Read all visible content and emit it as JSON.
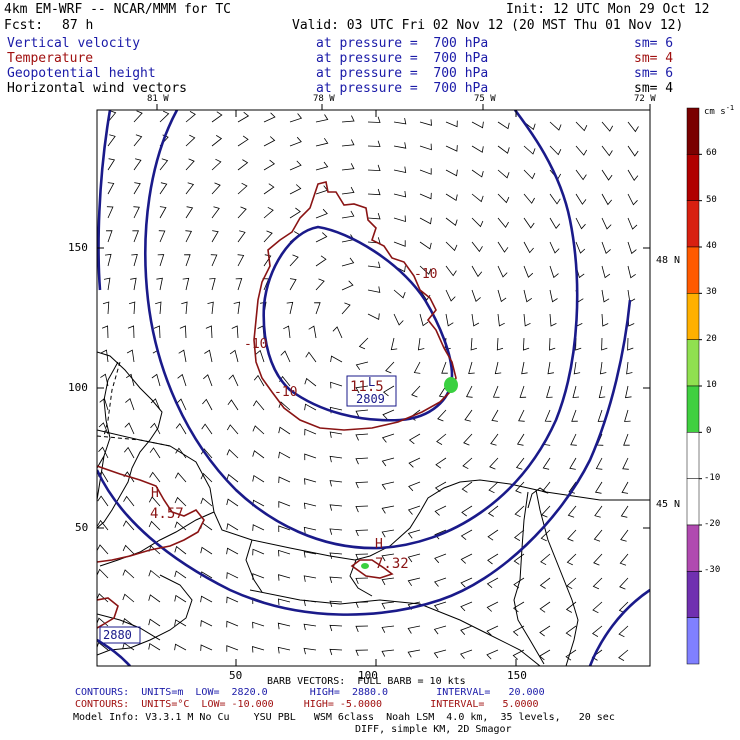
{
  "header": {
    "model": "4km EM-WRF -- NCAR/MMM for TC",
    "init": "Init: 12 UTC Mon 29 Oct 12",
    "fcst_label": "Fcst:",
    "fcst_value": "87 h",
    "valid": "Valid: 03 UTC Fri 02 Nov 12 (20 MST Thu 01 Nov 12)"
  },
  "fields": [
    {
      "name": "Vertical velocity",
      "level": "at pressure =  700 hPa",
      "sm": "sm= 6",
      "color": "#1a1aa8"
    },
    {
      "name": "Temperature",
      "level": "at pressure =  700 hPa",
      "sm": "sm= 4",
      "color": "#a01010"
    },
    {
      "name": "Geopotential height",
      "level": "at pressure =  700 hPa",
      "sm": "sm= 6",
      "color": "#1a1aa8"
    },
    {
      "name": "Horizontal wind vectors",
      "level": "at pressure =  700 hPa",
      "sm": "sm= 4",
      "color": "#000000"
    }
  ],
  "chart_data": {
    "type": "contour-map",
    "top_lon_labels": [
      "81 W",
      "78 W",
      "75 W",
      "72 W"
    ],
    "left_ticks": [
      150,
      100,
      50
    ],
    "bottom_ticks": [
      50,
      100,
      150
    ],
    "right_lat_labels": [
      "48 N",
      "45 N"
    ],
    "colorbar": {
      "unit": "cm s",
      "unit_exp": "-1",
      "labels": [
        60,
        50,
        40,
        30,
        20,
        10,
        0,
        -10,
        -20,
        -30
      ],
      "colors": [
        "#7a0000",
        "#b00000",
        "#d82010",
        "#ff5a00",
        "#ffb000",
        "#90e050",
        "#40d040",
        "#ffffff",
        "#ffffff",
        "#b04ab0",
        "#7030b0",
        "#8080ff"
      ]
    },
    "labels": {
      "low_value": "11.5",
      "low_marker": "L",
      "low_height": "2809",
      "high_west": "H",
      "high_west_value": "4.57",
      "high_south": "H",
      "high_south_value": "7.32",
      "height_label": "2880",
      "temp_contours": [
        "-10",
        "-10",
        "-10"
      ]
    }
  },
  "footer": {
    "barb": "BARB VECTORS:  FULL BARB = 10 kts",
    "contours_blue": "CONTOURS:  UNITS=m  LOW=  2820.0       HIGH=  2880.0        INTERVAL=   20.000",
    "contours_red": "CONTOURS:  UNITS=°C  LOW= -10.000     HIGH= -5.0000        INTERVAL=   5.0000",
    "model_info": "Model Info: V3.3.1 M No Cu    YSU PBL   WSM 6class  Noah LSM  4.0 km,  35 levels,   20 sec",
    "diff": "DIFF, simple KM, 2D Smagor"
  }
}
